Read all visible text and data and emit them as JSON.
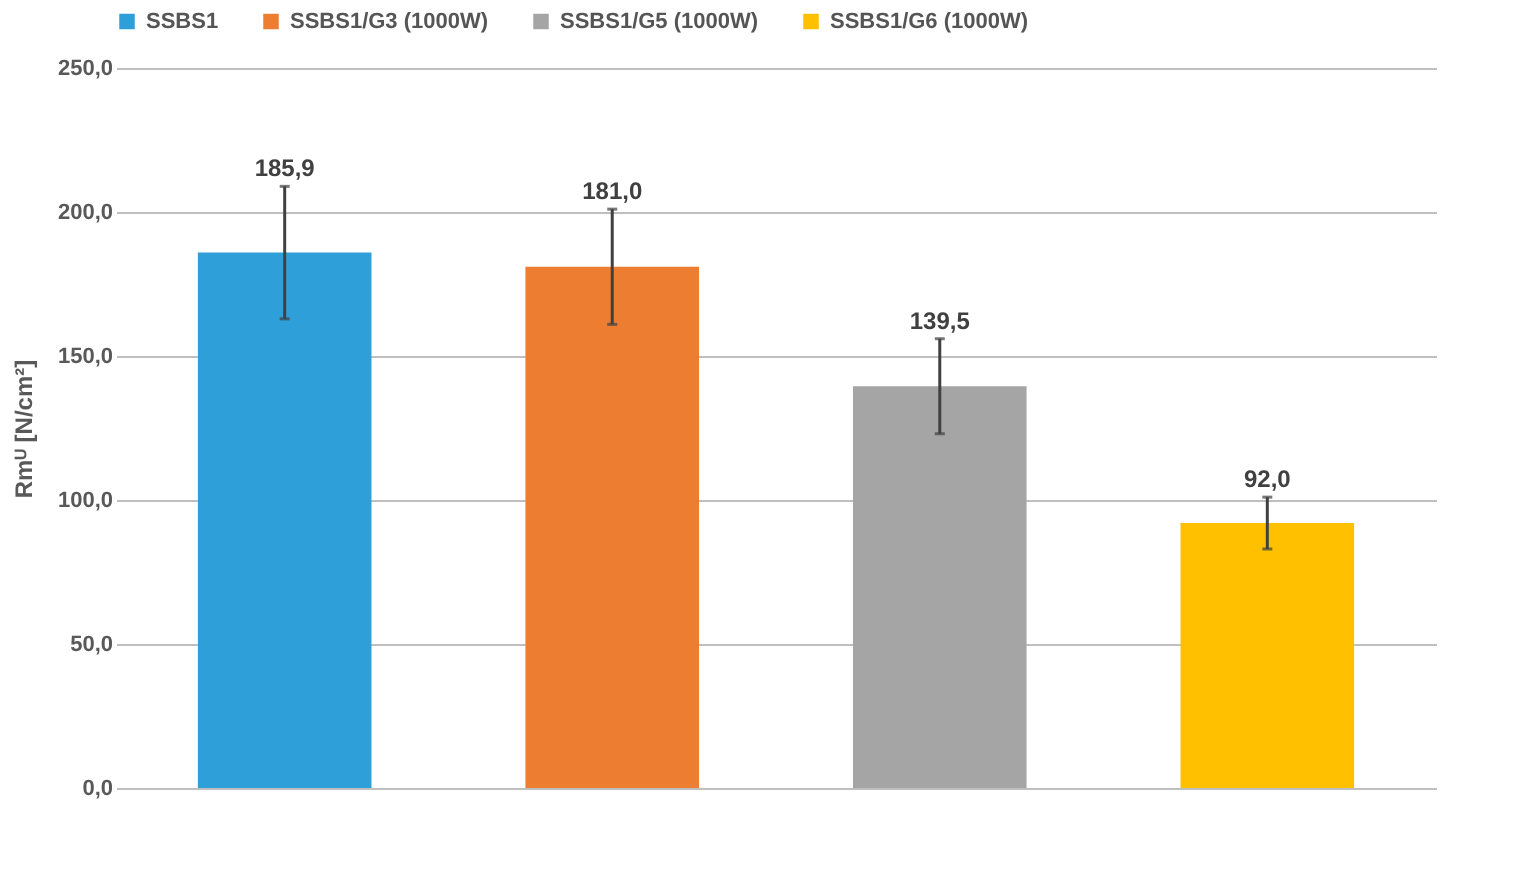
{
  "chart_data": {
    "type": "bar",
    "ylabel": "Rmᵁ [N/cm²]",
    "categories": [
      null,
      null,
      null,
      null
    ],
    "series": [
      {
        "name": "SSBS1",
        "color": "#2e9fd9",
        "values": [
          185.9,
          null,
          null,
          null
        ],
        "errors": [
          23,
          null,
          null,
          null
        ],
        "value_labels": [
          "185,9",
          null,
          null,
          null
        ]
      },
      {
        "name": "SSBS1/G3 (1000W)",
        "color": "#ed7d31",
        "values": [
          null,
          181.0,
          null,
          null
        ],
        "errors": [
          null,
          20,
          null,
          null
        ],
        "value_labels": [
          null,
          "181,0",
          null,
          null
        ]
      },
      {
        "name": "SSBS1/G5 (1000W)",
        "color": "#a5a5a5",
        "values": [
          null,
          null,
          139.5,
          null
        ],
        "errors": [
          null,
          null,
          16.5,
          null
        ],
        "value_labels": [
          null,
          null,
          "139,5",
          null
        ]
      },
      {
        "name": "SSBS1/G6 (1000W)",
        "color": "#ffc000",
        "values": [
          null,
          null,
          null,
          92.0
        ],
        "errors": [
          null,
          null,
          null,
          9
        ],
        "value_labels": [
          null,
          null,
          null,
          "92,0"
        ]
      }
    ],
    "ylim": [
      0,
      250
    ],
    "yticks": [
      {
        "value": 0,
        "label": "0,0"
      },
      {
        "value": 50,
        "label": "50,0"
      },
      {
        "value": 100,
        "label": "100,0"
      },
      {
        "value": 150,
        "label": "150,0"
      },
      {
        "value": 200,
        "label": "200,0"
      },
      {
        "value": 250,
        "label": "250,0"
      }
    ],
    "grid": "y",
    "legend": "top",
    "tick_labels": "y"
  }
}
